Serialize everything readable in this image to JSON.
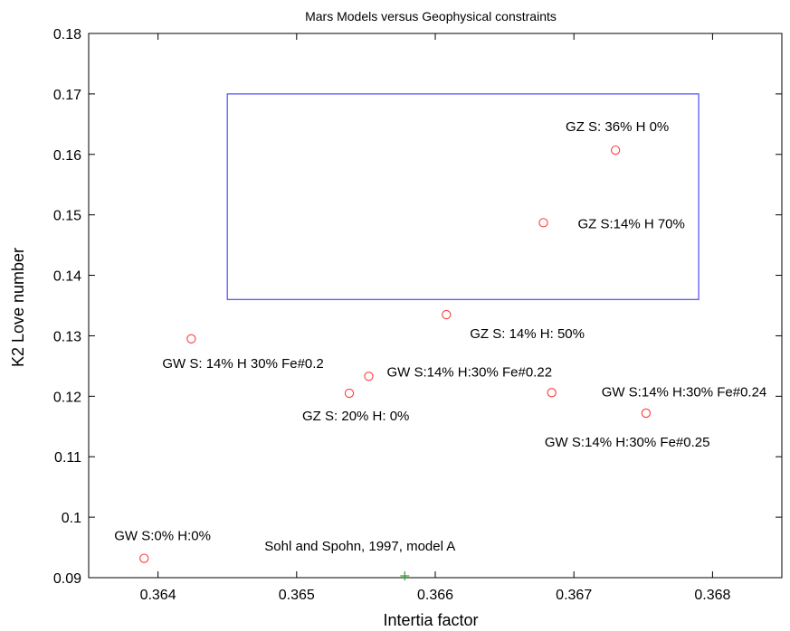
{
  "chart_data": {
    "type": "scatter",
    "title": "Mars Models versus Geophysical constraints",
    "xlabel": "Intertia factor",
    "ylabel": "K2 Love number",
    "xlim": [
      0.3635,
      0.3685
    ],
    "ylim": [
      0.09,
      0.18
    ],
    "x_ticks": [
      "0.364",
      "0.365",
      "0.366",
      "0.367",
      "0.368"
    ],
    "y_ticks": [
      "0.09",
      "0.1",
      "0.11",
      "0.12",
      "0.13",
      "0.14",
      "0.15",
      "0.16",
      "0.17",
      "0.18"
    ],
    "grid": false,
    "constraint_box": {
      "x_range": [
        0.3645,
        0.3679
      ],
      "y_range": [
        0.136,
        0.17
      ],
      "color": "#4a4aff"
    },
    "series": [
      {
        "marker": "circle",
        "color": "#ff3b3b",
        "points": [
          {
            "x": 0.3673,
            "y": 0.1607,
            "label": "GZ S: 36% H 0%"
          },
          {
            "x": 0.36678,
            "y": 0.1487,
            "label": "GZ S:14% H 70%"
          },
          {
            "x": 0.36608,
            "y": 0.1335,
            "label": "GZ S: 14% H: 50%"
          },
          {
            "x": 0.36424,
            "y": 0.1295,
            "label": "GW S: 14% H 30% Fe#0.2"
          },
          {
            "x": 0.36552,
            "y": 0.1233,
            "label": "GW S:14% H:30% Fe#0.22"
          },
          {
            "x": 0.36538,
            "y": 0.1205,
            "label": "GZ S: 20% H: 0%"
          },
          {
            "x": 0.36684,
            "y": 0.1206,
            "label": "GW S:14% H:30% Fe#0.24"
          },
          {
            "x": 0.36752,
            "y": 0.1172,
            "label": "GW S:14% H:30% Fe#0.25"
          },
          {
            "x": 0.3639,
            "y": 0.0932,
            "label": "GW S:0% H:0%"
          }
        ]
      },
      {
        "marker": "plus",
        "color": "#2a9d2a",
        "points": [
          {
            "x": 0.36578,
            "y": 0.0903,
            "label": "Sohl and Spohn, 1997, model A"
          }
        ]
      }
    ]
  }
}
